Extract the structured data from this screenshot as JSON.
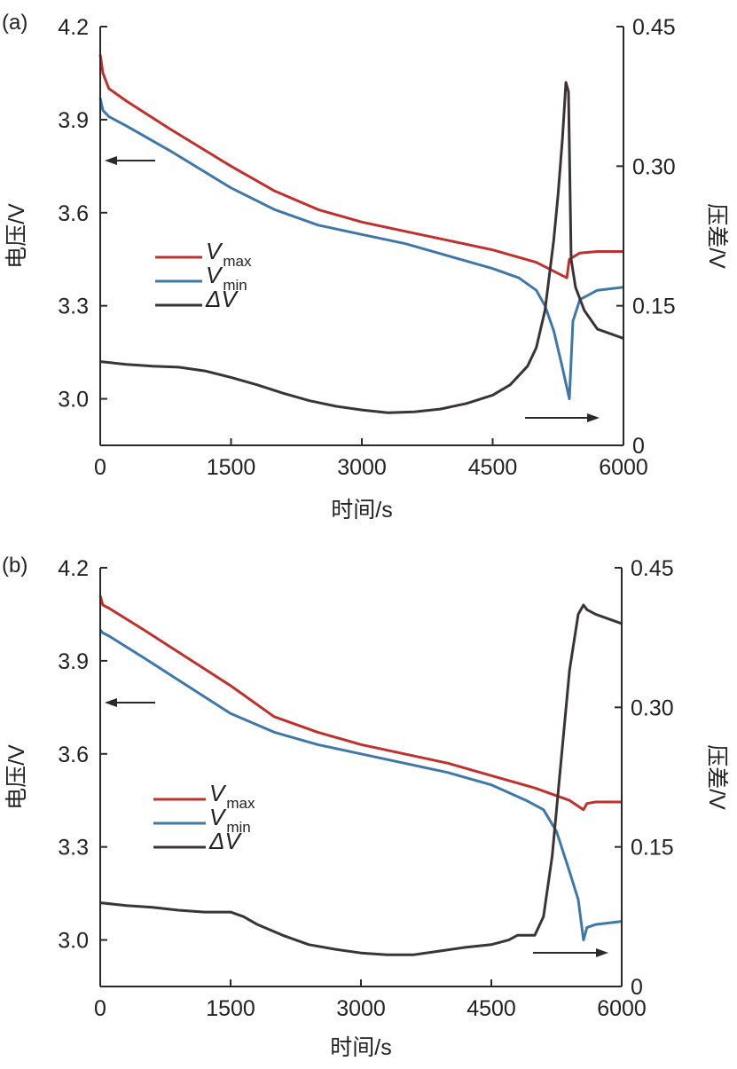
{
  "colors": {
    "vmax": "#c0302c",
    "vmin": "#3f78a8",
    "dv": "#3a3434",
    "axis": "#2a2a2a",
    "text": "#222222"
  },
  "legend": {
    "vmax_main": "V",
    "vmax_sub": "max",
    "vmin_main": "V",
    "vmin_sub": "min",
    "dv_label": "ΔV"
  },
  "chart_data": [
    {
      "panel_label": "(a)",
      "type": "line",
      "xlabel": "时间/s",
      "ylabel": "电压/V",
      "y2label": "压差/V",
      "xlim": [
        0,
        6000
      ],
      "ylim": [
        2.85,
        4.2
      ],
      "y2lim": [
        0,
        0.45
      ],
      "xticks": [
        "0",
        "1500",
        "3000",
        "4500",
        "6000"
      ],
      "yticks": [
        "4.2",
        "3.9",
        "3.6",
        "3.3",
        "3.0"
      ],
      "y2ticks": [
        "0.45",
        "0.30",
        "0.15",
        "0"
      ],
      "series": [
        {
          "name": "Vmax",
          "axis": "left",
          "x": [
            0,
            30,
            100,
            300,
            800,
            1500,
            2000,
            2500,
            3000,
            3500,
            4000,
            4500,
            5000,
            5350,
            5380,
            5500,
            5700,
            6000
          ],
          "y": [
            4.11,
            4.05,
            4.0,
            3.96,
            3.87,
            3.75,
            3.67,
            3.61,
            3.57,
            3.54,
            3.51,
            3.48,
            3.44,
            3.39,
            3.45,
            3.47,
            3.475,
            3.475
          ]
        },
        {
          "name": "Vmin",
          "axis": "left",
          "x": [
            0,
            30,
            100,
            300,
            800,
            1500,
            2000,
            2500,
            3000,
            3500,
            4000,
            4500,
            4800,
            5000,
            5100,
            5200,
            5300,
            5380,
            5420,
            5500,
            5700,
            6000
          ],
          "y": [
            3.97,
            3.93,
            3.91,
            3.88,
            3.8,
            3.68,
            3.61,
            3.56,
            3.53,
            3.5,
            3.46,
            3.42,
            3.39,
            3.35,
            3.3,
            3.22,
            3.1,
            3.0,
            3.25,
            3.32,
            3.35,
            3.36
          ]
        },
        {
          "name": "ΔV",
          "axis": "right",
          "x": [
            0,
            300,
            600,
            900,
            1200,
            1500,
            1800,
            2100,
            2400,
            2700,
            3000,
            3300,
            3600,
            3900,
            4200,
            4500,
            4700,
            4900,
            5000,
            5100,
            5200,
            5250,
            5300,
            5340,
            5370,
            5400,
            5450,
            5550,
            5700,
            6000
          ],
          "y": [
            0.09,
            0.087,
            0.085,
            0.084,
            0.08,
            0.073,
            0.065,
            0.056,
            0.048,
            0.042,
            0.038,
            0.035,
            0.036,
            0.039,
            0.045,
            0.054,
            0.065,
            0.085,
            0.105,
            0.145,
            0.22,
            0.27,
            0.33,
            0.39,
            0.38,
            0.2,
            0.17,
            0.145,
            0.125,
            0.115
          ]
        }
      ]
    },
    {
      "panel_label": "(b)",
      "type": "line",
      "xlabel": "时间/s",
      "ylabel": "电压/V",
      "y2label": "压差/V",
      "xlim": [
        0,
        6000
      ],
      "ylim": [
        2.85,
        4.2
      ],
      "y2lim": [
        0,
        0.45
      ],
      "xticks": [
        "0",
        "1500",
        "3000",
        "4500",
        "6000"
      ],
      "yticks": [
        "4.2",
        "3.9",
        "3.6",
        "3.3",
        "3.0"
      ],
      "y2ticks": [
        "0.45",
        "0.30",
        "0.15",
        "0"
      ],
      "series": [
        {
          "name": "Vmax",
          "axis": "left",
          "x": [
            0,
            30,
            100,
            500,
            1000,
            1500,
            2000,
            2500,
            3000,
            3500,
            4000,
            4500,
            5000,
            5400,
            5560,
            5600,
            5700,
            6000
          ],
          "y": [
            4.11,
            4.08,
            4.07,
            4.0,
            3.91,
            3.82,
            3.72,
            3.67,
            3.63,
            3.6,
            3.57,
            3.53,
            3.49,
            3.45,
            3.42,
            3.44,
            3.445,
            3.445
          ]
        },
        {
          "name": "Vmin",
          "axis": "left",
          "x": [
            0,
            30,
            100,
            500,
            1000,
            1500,
            2000,
            2500,
            3000,
            3500,
            4000,
            4500,
            4900,
            5100,
            5250,
            5400,
            5500,
            5560,
            5600,
            5700,
            6000
          ],
          "y": [
            4.0,
            3.99,
            3.98,
            3.91,
            3.82,
            3.73,
            3.67,
            3.63,
            3.6,
            3.57,
            3.54,
            3.5,
            3.45,
            3.42,
            3.35,
            3.22,
            3.13,
            3.0,
            3.04,
            3.05,
            3.06
          ]
        },
        {
          "name": "ΔV",
          "axis": "right",
          "x": [
            0,
            300,
            600,
            900,
            1200,
            1500,
            1650,
            1800,
            2100,
            2400,
            2700,
            3000,
            3300,
            3600,
            3900,
            4200,
            4500,
            4700,
            4800,
            5000,
            5100,
            5200,
            5300,
            5400,
            5500,
            5560,
            5600,
            5700,
            6000
          ],
          "y": [
            0.09,
            0.087,
            0.085,
            0.082,
            0.08,
            0.08,
            0.075,
            0.067,
            0.055,
            0.045,
            0.04,
            0.036,
            0.034,
            0.034,
            0.038,
            0.042,
            0.045,
            0.05,
            0.055,
            0.055,
            0.075,
            0.14,
            0.24,
            0.34,
            0.4,
            0.41,
            0.405,
            0.4,
            0.39
          ]
        }
      ]
    }
  ]
}
